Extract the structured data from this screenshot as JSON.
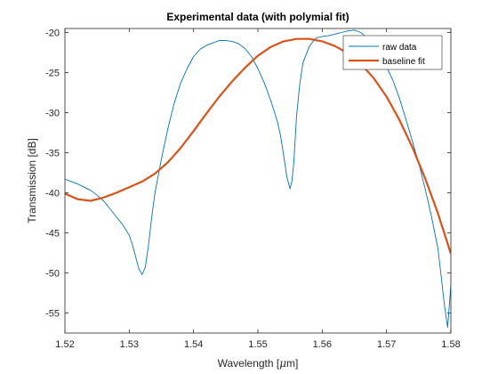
{
  "chart_data": {
    "type": "line",
    "title": "Experimental data (with polymial fit)",
    "xlabel": "Wavelength [",
    "xlabel_mu": "μ",
    "xlabel_end": "m]",
    "ylabel": "Transmission [dB]",
    "xlim": [
      1.52,
      1.58
    ],
    "ylim": [
      -57.5,
      -19.5
    ],
    "xticks": [
      1.52,
      1.53,
      1.54,
      1.55,
      1.56,
      1.57,
      1.58
    ],
    "xtick_labels": [
      "1.52",
      "1.53",
      "1.54",
      "1.55",
      "1.56",
      "1.57",
      "1.58"
    ],
    "yticks": [
      -20,
      -25,
      -30,
      -35,
      -40,
      -45,
      -50,
      -55
    ],
    "ytick_labels": [
      "-20",
      "-25",
      "-30",
      "-35",
      "-40",
      "-45",
      "-50",
      "-55"
    ],
    "legend_position": "top-right",
    "series": [
      {
        "name": "raw data",
        "color": "#0072BD",
        "x": [
          1.52,
          1.521,
          1.522,
          1.523,
          1.524,
          1.525,
          1.526,
          1.527,
          1.528,
          1.529,
          1.53,
          1.5305,
          1.531,
          1.5315,
          1.532,
          1.5325,
          1.533,
          1.5335,
          1.534,
          1.535,
          1.536,
          1.537,
          1.538,
          1.539,
          1.54,
          1.541,
          1.542,
          1.543,
          1.544,
          1.545,
          1.546,
          1.547,
          1.548,
          1.549,
          1.55,
          1.551,
          1.552,
          1.553,
          1.5535,
          1.554,
          1.5545,
          1.555,
          1.5553,
          1.5556,
          1.556,
          1.5565,
          1.557,
          1.558,
          1.559,
          1.56,
          1.561,
          1.562,
          1.563,
          1.564,
          1.565,
          1.566,
          1.567,
          1.568,
          1.569,
          1.57,
          1.571,
          1.572,
          1.573,
          1.574,
          1.575,
          1.576,
          1.577,
          1.578,
          1.5785,
          1.579,
          1.5795,
          1.58
        ],
        "y": [
          -38.3,
          -38.6,
          -38.9,
          -39.3,
          -39.7,
          -40.3,
          -41.0,
          -42.0,
          -43.0,
          -44.0,
          -45.3,
          -46.5,
          -48.0,
          -49.5,
          -50.2,
          -49.3,
          -46.5,
          -43.0,
          -40.0,
          -35.8,
          -32.0,
          -28.8,
          -26.3,
          -24.5,
          -23.0,
          -22.1,
          -21.6,
          -21.3,
          -21.0,
          -21.0,
          -21.1,
          -21.4,
          -22.0,
          -23.0,
          -24.5,
          -26.3,
          -28.5,
          -31.0,
          -32.8,
          -35.3,
          -38.0,
          -39.5,
          -38.5,
          -36.0,
          -30.5,
          -26.5,
          -23.8,
          -21.7,
          -20.7,
          -20.5,
          -20.4,
          -20.2,
          -20.0,
          -19.8,
          -19.7,
          -20.0,
          -20.7,
          -21.6,
          -22.8,
          -24.3,
          -26.0,
          -28.2,
          -30.8,
          -33.5,
          -36.3,
          -39.5,
          -43.0,
          -47.0,
          -50.5,
          -54.0,
          -56.8,
          -51.5
        ]
      },
      {
        "name": "baseline fit",
        "color": "#D95319",
        "x": [
          1.52,
          1.522,
          1.524,
          1.526,
          1.528,
          1.53,
          1.532,
          1.534,
          1.536,
          1.538,
          1.54,
          1.542,
          1.544,
          1.546,
          1.548,
          1.55,
          1.552,
          1.554,
          1.556,
          1.558,
          1.56,
          1.562,
          1.564,
          1.566,
          1.568,
          1.57,
          1.572,
          1.574,
          1.576,
          1.578,
          1.58
        ],
        "y": [
          -40.1,
          -40.8,
          -41.0,
          -40.6,
          -40.0,
          -39.3,
          -38.6,
          -37.6,
          -36.2,
          -34.4,
          -32.3,
          -30.1,
          -28.0,
          -26.1,
          -24.4,
          -22.9,
          -21.8,
          -21.1,
          -20.8,
          -20.8,
          -21.1,
          -21.7,
          -22.6,
          -23.9,
          -25.7,
          -28.0,
          -30.9,
          -34.3,
          -38.2,
          -42.6,
          -47.6
        ]
      }
    ]
  }
}
